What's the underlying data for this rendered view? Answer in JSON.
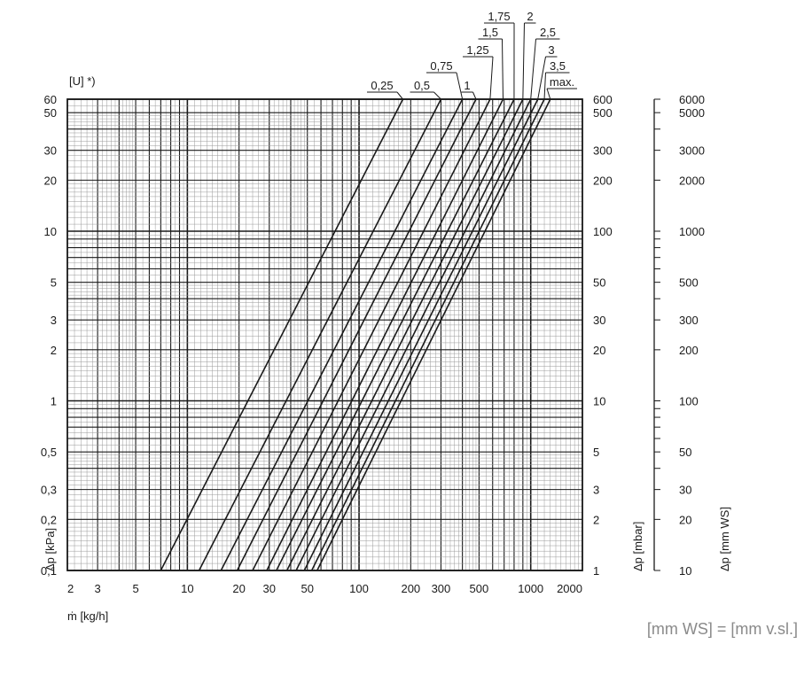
{
  "chart_data": {
    "type": "line",
    "title": "",
    "xlabel": "ṁ [kg/h]",
    "ylabel": "Δp [kPa]",
    "ylabel_right": "Δp [mbar]",
    "ylabel_far_right": "Δp [mm WS]",
    "x_scale": "log",
    "y_scale": "log",
    "xlim": [
      2,
      2000
    ],
    "ylim": [
      0.1,
      60
    ],
    "grid": true,
    "x_ticks": [
      {
        "value": 2,
        "label": "2"
      },
      {
        "value": 3,
        "label": "3"
      },
      {
        "value": 5,
        "label": "5"
      },
      {
        "value": 10,
        "label": "10"
      },
      {
        "value": 20,
        "label": "20"
      },
      {
        "value": 30,
        "label": "30"
      },
      {
        "value": 50,
        "label": "50"
      },
      {
        "value": 100,
        "label": "100"
      },
      {
        "value": 200,
        "label": "200"
      },
      {
        "value": 300,
        "label": "300"
      },
      {
        "value": 500,
        "label": "500"
      },
      {
        "value": 1000,
        "label": "1000"
      },
      {
        "value": 2000,
        "label": "2000"
      }
    ],
    "y_ticks_left": [
      {
        "value": 0.1,
        "label": "0,1"
      },
      {
        "value": 0.2,
        "label": "0,2"
      },
      {
        "value": 0.3,
        "label": "0,3"
      },
      {
        "value": 0.5,
        "label": "0,5"
      },
      {
        "value": 1,
        "label": "1"
      },
      {
        "value": 2,
        "label": "2"
      },
      {
        "value": 3,
        "label": "3"
      },
      {
        "value": 5,
        "label": "5"
      },
      {
        "value": 10,
        "label": "10"
      },
      {
        "value": 20,
        "label": "20"
      },
      {
        "value": 30,
        "label": "30"
      },
      {
        "value": 50,
        "label": "50"
      },
      {
        "value": 60,
        "label": "60"
      }
    ],
    "y_ticks_mbar": [
      {
        "value": 0.1,
        "label": "1"
      },
      {
        "value": 0.2,
        "label": "2"
      },
      {
        "value": 0.3,
        "label": "3"
      },
      {
        "value": 0.5,
        "label": "5"
      },
      {
        "value": 1,
        "label": "10"
      },
      {
        "value": 2,
        "label": "20"
      },
      {
        "value": 3,
        "label": "30"
      },
      {
        "value": 5,
        "label": "50"
      },
      {
        "value": 10,
        "label": "100"
      },
      {
        "value": 20,
        "label": "200"
      },
      {
        "value": 30,
        "label": "300"
      },
      {
        "value": 50,
        "label": "500"
      },
      {
        "value": 60,
        "label": "600"
      }
    ],
    "y_ticks_mmws": [
      {
        "value": 0.1,
        "label": "10"
      },
      {
        "value": 0.2,
        "label": "20"
      },
      {
        "value": 0.3,
        "label": "30"
      },
      {
        "value": 0.5,
        "label": "50"
      },
      {
        "value": 1,
        "label": "100"
      },
      {
        "value": 2,
        "label": "200"
      },
      {
        "value": 3,
        "label": "300"
      },
      {
        "value": 5,
        "label": "500"
      },
      {
        "value": 10,
        "label": "1000"
      },
      {
        "value": 20,
        "label": "2000"
      },
      {
        "value": 30,
        "label": "3000"
      },
      {
        "value": 50,
        "label": "5000"
      },
      {
        "value": 60,
        "label": "6000"
      }
    ],
    "series_header": "[U] *)",
    "series": [
      {
        "name": "0,25",
        "x": [
          7,
          180
        ],
        "y": [
          0.1,
          60
        ]
      },
      {
        "name": "0,5",
        "x": [
          11.7,
          300
        ],
        "y": [
          0.1,
          60
        ]
      },
      {
        "name": "0,75",
        "x": [
          15.7,
          400
        ],
        "y": [
          0.1,
          60
        ]
      },
      {
        "name": "1",
        "x": [
          19.5,
          480
        ],
        "y": [
          0.1,
          60
        ]
      },
      {
        "name": "1,25",
        "x": [
          24,
          580
        ],
        "y": [
          0.1,
          60
        ]
      },
      {
        "name": "1,5",
        "x": [
          29,
          690
        ],
        "y": [
          0.1,
          60
        ]
      },
      {
        "name": "1,75",
        "x": [
          33,
          800
        ],
        "y": [
          0.1,
          60
        ]
      },
      {
        "name": "2",
        "x": [
          38,
          900
        ],
        "y": [
          0.1,
          60
        ]
      },
      {
        "name": "2,5",
        "x": [
          43,
          1000
        ],
        "y": [
          0.1,
          60
        ]
      },
      {
        "name": "3",
        "x": [
          48,
          1100
        ],
        "y": [
          0.1,
          60
        ]
      },
      {
        "name": "3,5",
        "x": [
          53,
          1200
        ],
        "y": [
          0.1,
          60
        ]
      },
      {
        "name": "max.",
        "x": [
          57,
          1300
        ],
        "y": [
          0.1,
          60
        ]
      }
    ]
  },
  "footnote": "[mm WS] = [mm v.sl.]"
}
